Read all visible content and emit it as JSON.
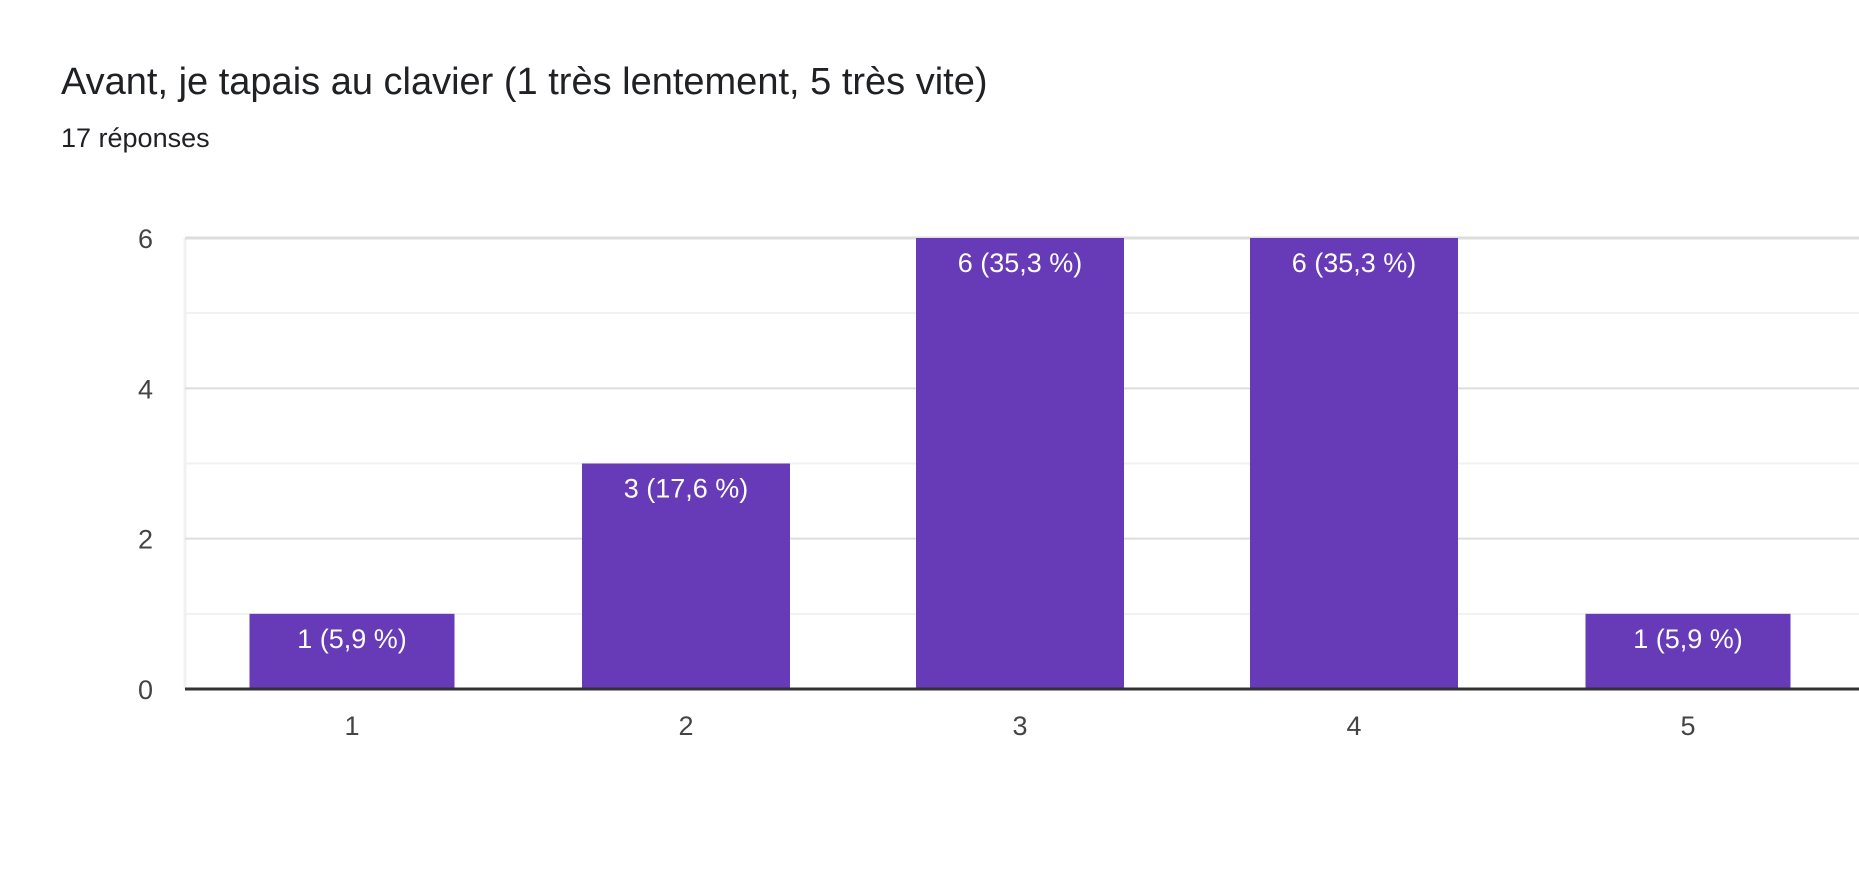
{
  "question": {
    "title": "Avant, je tapais au clavier (1 très lentement, 5 très vite)",
    "response_count": "17 réponses"
  },
  "colors": {
    "bar": "#673ab7",
    "bar_label": "#ffffff",
    "axis_text": "#444444",
    "grid_major": "#dddddd",
    "grid_minor": "#f1f1f1",
    "baseline": "#333333"
  },
  "chart_data": {
    "type": "bar",
    "title": "Avant, je tapais au clavier (1 très lentement, 5 très vite)",
    "subtitle": "17 réponses",
    "categories": [
      "1",
      "2",
      "3",
      "4",
      "5"
    ],
    "values": [
      1,
      3,
      6,
      6,
      1
    ],
    "data_labels": [
      "1 (5,9 %)",
      "3 (17,6 %)",
      "6 (35,3 %)",
      "6 (35,3 %)",
      "1 (5,9 %)"
    ],
    "yticks": [
      0,
      2,
      4,
      6
    ],
    "ylim": [
      0,
      6
    ],
    "xlabel": "",
    "ylabel": "",
    "grid": true,
    "legend": false
  }
}
